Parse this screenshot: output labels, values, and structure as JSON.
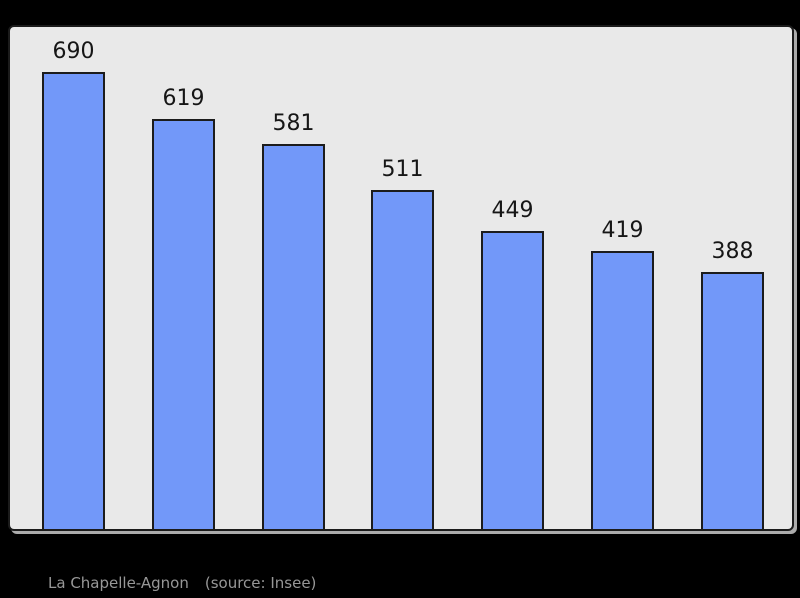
{
  "page_bg": "#000000",
  "chart_data": {
    "type": "bar",
    "categories": [
      "",
      "",
      "",
      "",
      "",
      "",
      ""
    ],
    "values": [
      690,
      619,
      581,
      511,
      449,
      419,
      388
    ],
    "data_labels": [
      "690",
      "619",
      "581",
      "511",
      "449",
      "419",
      "388"
    ],
    "title": "",
    "xlabel": "",
    "ylabel": "",
    "ylim": [
      0,
      760
    ],
    "grid": false,
    "legend": false,
    "x_axis_ticks_visible": false,
    "y_axis_ticks_visible": false,
    "bar_color": "#7298f9",
    "bar_border_color": "#1c1c1c",
    "plot_bg": "#e9e9e9",
    "plot_border_color": "#1b1b1b",
    "plot_shadow_color": "#ababab",
    "data_label_color": "#161616"
  },
  "caption": {
    "title": "La Chapelle-Agnon",
    "source": "(source: Insee)",
    "color": "#979797"
  }
}
